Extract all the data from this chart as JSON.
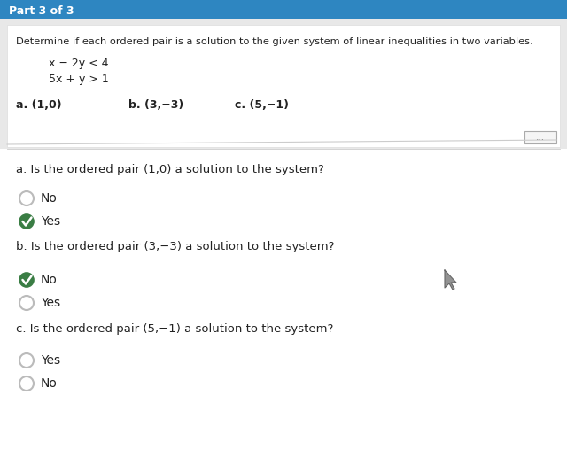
{
  "bg_color": "#f0f0f0",
  "header_bg": "#2e86c1",
  "header_text": "Part 3 of 3",
  "header_text_color": "#ffffff",
  "body_bg": "#ffffff",
  "main_question": "Determine if each ordered pair is a solution to the given system of linear inequalities in two variables.",
  "ineq1": "x − 2y < 4",
  "ineq2": "5x + y > 1",
  "qa_text": "a. Is the ordered pair (1,0) a solution to the system?",
  "qa_opt1": "No",
  "qa_opt2": "Yes",
  "qa_opt1_selected": false,
  "qa_opt2_selected": true,
  "qb_text": "b. Is the ordered pair (3,−3) a solution to the system?",
  "qb_opt1": "No",
  "qb_opt2": "Yes",
  "qb_opt1_selected": true,
  "qb_opt2_selected": false,
  "qc_text": "c. Is the ordered pair (5,−1) a solution to the system?",
  "qc_opt1": "Yes",
  "qc_opt2": "No",
  "qc_opt1_selected": false,
  "qc_opt2_selected": false,
  "check_color": "#3a7d44",
  "unselected_color": "#bbbbbb",
  "text_color": "#222222",
  "separator_color": "#cccccc",
  "dots_color": "#888888",
  "cursor_color": "#666666",
  "pair_a": "a. (1,0)",
  "pair_b": "b. (3,−3)",
  "pair_c": "c. (5,−1)"
}
